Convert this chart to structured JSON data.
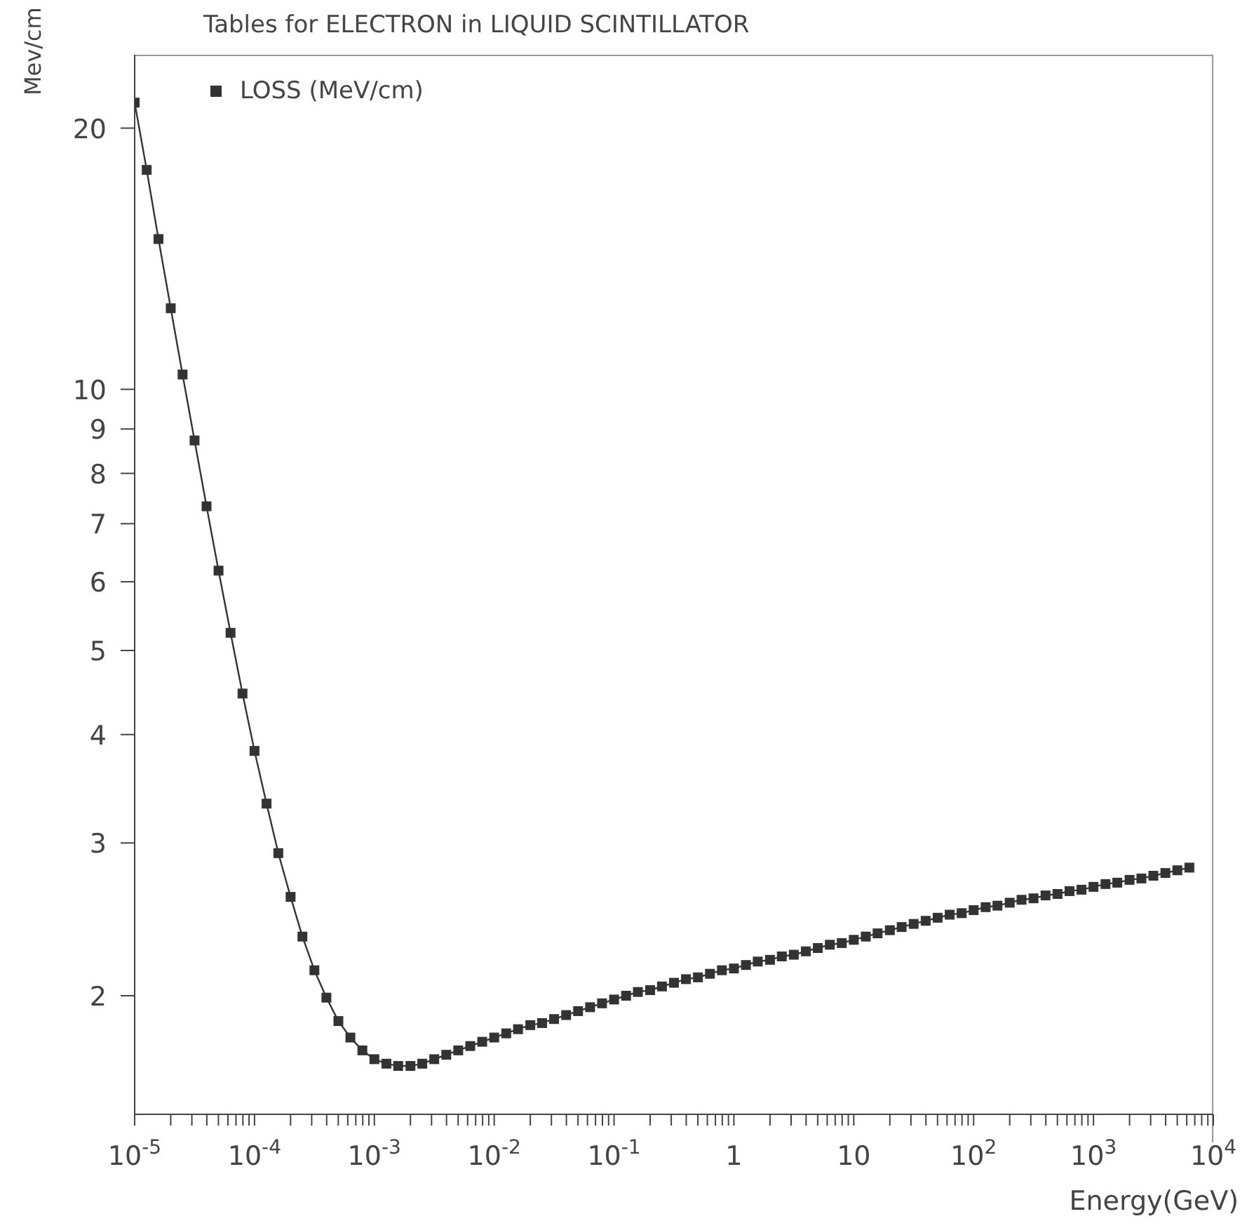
{
  "chart_data": {
    "type": "line",
    "title": "Tables for ELECTRON in LIQUID SCINTILLATOR",
    "xlabel": "Energy(GeV)",
    "ylabel": "Mev/cm",
    "log": "xy",
    "grid": false,
    "legend": "top left",
    "marker": "square",
    "line_style": "solid",
    "x": [
      1e-05,
      1.26e-05,
      1.58e-05,
      2e-05,
      2.51e-05,
      3.16e-05,
      3.98e-05,
      5.01e-05,
      6.31e-05,
      7.94e-05,
      0.0001,
      0.000126,
      0.000158,
      0.0002,
      0.000251,
      0.000316,
      0.000398,
      0.000501,
      0.000631,
      0.000794,
      0.001,
      0.00126,
      0.00158,
      0.002,
      0.00251,
      0.00316,
      0.00398,
      0.00501,
      0.00631,
      0.00794,
      0.01,
      0.0126,
      0.0158,
      0.02,
      0.0251,
      0.0316,
      0.0398,
      0.0501,
      0.0631,
      0.0794,
      0.1,
      0.126,
      0.158,
      0.2,
      0.251,
      0.316,
      0.398,
      0.501,
      0.631,
      0.794,
      1,
      1.26,
      1.58,
      2,
      2.51,
      3.16,
      3.98,
      5.01,
      6.31,
      7.94,
      10,
      12.6,
      15.8,
      20,
      25.1,
      31.6,
      39.8,
      50.1,
      63.1,
      79.4,
      100,
      126,
      158,
      200,
      251,
      316,
      398,
      501,
      631,
      794,
      1000,
      1260,
      1580,
      2000,
      2510,
      3160,
      3980,
      5010,
      6310
    ],
    "series": [
      {
        "name": "LOSS (MeV/cm)",
        "color": "#333333",
        "values": [
          21.4,
          17.9,
          14.9,
          12.4,
          10.4,
          8.73,
          7.33,
          6.18,
          5.24,
          4.46,
          3.83,
          3.33,
          2.92,
          2.6,
          2.34,
          2.14,
          1.99,
          1.87,
          1.79,
          1.73,
          1.69,
          1.67,
          1.66,
          1.66,
          1.67,
          1.69,
          1.71,
          1.73,
          1.75,
          1.77,
          1.79,
          1.81,
          1.83,
          1.85,
          1.86,
          1.88,
          1.9,
          1.92,
          1.94,
          1.96,
          1.98,
          2.0,
          2.02,
          2.03,
          2.05,
          2.07,
          2.09,
          2.1,
          2.12,
          2.14,
          2.15,
          2.17,
          2.19,
          2.2,
          2.22,
          2.23,
          2.25,
          2.27,
          2.29,
          2.3,
          2.32,
          2.34,
          2.36,
          2.38,
          2.4,
          2.42,
          2.44,
          2.46,
          2.48,
          2.49,
          2.51,
          2.53,
          2.54,
          2.56,
          2.58,
          2.59,
          2.61,
          2.62,
          2.64,
          2.65,
          2.67,
          2.69,
          2.7,
          2.72,
          2.73,
          2.75,
          2.77,
          2.79,
          2.81
        ]
      }
    ],
    "xlim": [
      1e-05,
      10000.0
    ],
    "ylim": [
      1.46,
      24.3
    ],
    "yticks": [
      2,
      3,
      4,
      5,
      6,
      7,
      8,
      9,
      10,
      20
    ],
    "xticks": [
      {
        "value": 1e-05,
        "label": "10$^{-5}$"
      },
      {
        "value": 2e-05,
        "label": null
      },
      {
        "value": 3e-05,
        "label": null
      },
      {
        "value": 4e-05,
        "label": null
      },
      {
        "value": 5e-05,
        "label": null
      },
      {
        "value": 6e-05,
        "label": null
      },
      {
        "value": 7e-05,
        "label": null
      },
      {
        "value": 8e-05,
        "label": null
      },
      {
        "value": 9e-05,
        "label": null
      },
      {
        "value": 0.0001,
        "label": "10$^{-4}$"
      },
      {
        "value": 0.0002,
        "label": null
      },
      {
        "value": 0.0003,
        "label": null
      },
      {
        "value": 0.0004,
        "label": null
      },
      {
        "value": 0.0005,
        "label": null
      },
      {
        "value": 0.0006,
        "label": null
      },
      {
        "value": 0.0007,
        "label": null
      },
      {
        "value": 0.0008,
        "label": null
      },
      {
        "value": 0.0009,
        "label": null
      },
      {
        "value": 0.001,
        "label": "10$^{-3}$"
      },
      {
        "value": 0.002,
        "label": null
      },
      {
        "value": 0.003,
        "label": null
      },
      {
        "value": 0.004,
        "label": null
      },
      {
        "value": 0.005,
        "label": null
      },
      {
        "value": 0.006,
        "label": null
      },
      {
        "value": 0.007,
        "label": null
      },
      {
        "value": 0.008,
        "label": null
      },
      {
        "value": 0.009,
        "label": null
      },
      {
        "value": 0.01,
        "label": "10$^{-2}$"
      },
      {
        "value": 0.02,
        "label": null
      },
      {
        "value": 0.03,
        "label": null
      },
      {
        "value": 0.04,
        "label": null
      },
      {
        "value": 0.05,
        "label": null
      },
      {
        "value": 0.06,
        "label": null
      },
      {
        "value": 0.07,
        "label": null
      },
      {
        "value": 0.08,
        "label": null
      },
      {
        "value": 0.09,
        "label": null
      },
      {
        "value": 0.1,
        "label": "10$^{-1}$"
      },
      {
        "value": 0.2,
        "label": null
      },
      {
        "value": 0.3,
        "label": null
      },
      {
        "value": 0.4,
        "label": null
      },
      {
        "value": 0.5,
        "label": null
      },
      {
        "value": 0.6,
        "label": null
      },
      {
        "value": 0.7,
        "label": null
      },
      {
        "value": 0.8,
        "label": null
      },
      {
        "value": 0.9,
        "label": null
      },
      {
        "value": 1,
        "label": "1"
      },
      {
        "value": 2,
        "label": null
      },
      {
        "value": 3,
        "label": null
      },
      {
        "value": 4,
        "label": null
      },
      {
        "value": 5,
        "label": null
      },
      {
        "value": 6,
        "label": null
      },
      {
        "value": 7,
        "label": null
      },
      {
        "value": 8,
        "label": null
      },
      {
        "value": 9,
        "label": null
      },
      {
        "value": 10,
        "label": "10"
      },
      {
        "value": 20,
        "label": null
      },
      {
        "value": 30,
        "label": null
      },
      {
        "value": 40,
        "label": null
      },
      {
        "value": 50,
        "label": null
      },
      {
        "value": 60,
        "label": null
      },
      {
        "value": 70,
        "label": null
      },
      {
        "value": 80,
        "label": null
      },
      {
        "value": 90,
        "label": null
      },
      {
        "value": 100,
        "label": "10$^{2}$"
      },
      {
        "value": 200,
        "label": null
      },
      {
        "value": 300,
        "label": null
      },
      {
        "value": 400,
        "label": null
      },
      {
        "value": 500,
        "label": null
      },
      {
        "value": 600,
        "label": null
      },
      {
        "value": 700,
        "label": null
      },
      {
        "value": 800,
        "label": null
      },
      {
        "value": 900,
        "label": null
      },
      {
        "value": 1000,
        "label": "10$^{3}$"
      },
      {
        "value": 2000,
        "label": null
      },
      {
        "value": 3000,
        "label": null
      },
      {
        "value": 4000,
        "label": null
      },
      {
        "value": 5000,
        "label": null
      },
      {
        "value": 6000,
        "label": null
      },
      {
        "value": 7000,
        "label": null
      },
      {
        "value": 8000,
        "label": null
      },
      {
        "value": 9000,
        "label": null
      },
      {
        "value": 10000,
        "label": "10$^{4}$"
      }
    ]
  }
}
